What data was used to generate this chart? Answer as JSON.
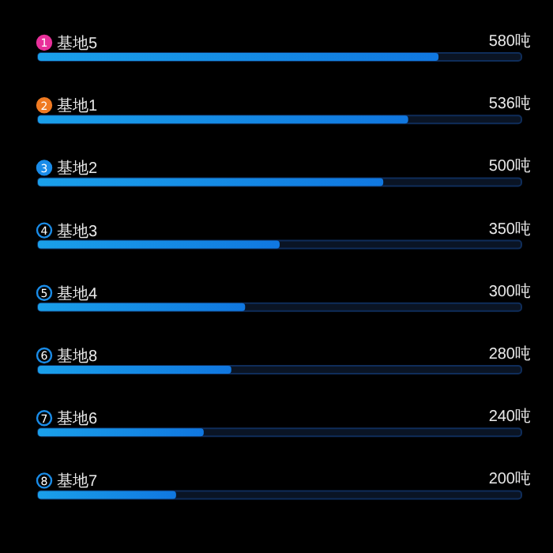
{
  "chart_data": {
    "type": "bar",
    "orientation": "horizontal",
    "categories": [
      "基地5",
      "基地1",
      "基地2",
      "基地3",
      "基地4",
      "基地8",
      "基地6",
      "基地7"
    ],
    "values": [
      580,
      536,
      500,
      350,
      300,
      280,
      240,
      200
    ],
    "value_labels": [
      "580吨",
      "536吨",
      "500吨",
      "350吨",
      "300吨",
      "280吨",
      "240吨",
      "200吨"
    ],
    "color": "#1077e0",
    "xlim": [
      0,
      700
    ],
    "annotations": [
      "1",
      "2",
      "3",
      "4",
      "5",
      "6",
      "7",
      "8"
    ]
  }
}
